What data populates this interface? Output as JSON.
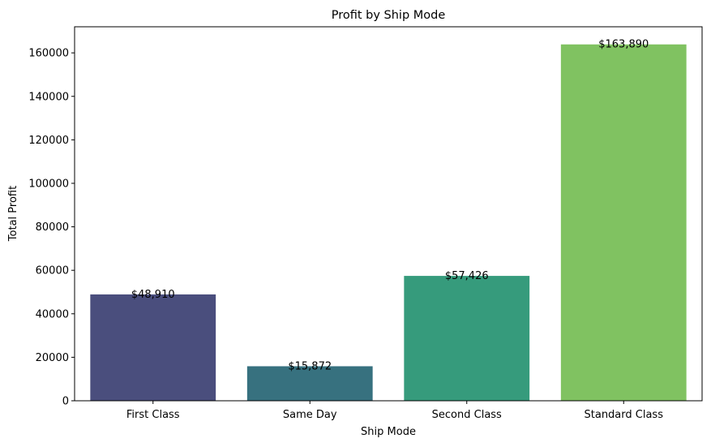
{
  "chart_data": {
    "type": "bar",
    "title": "Profit by Ship Mode",
    "xlabel": "Ship Mode",
    "ylabel": "Total Profit",
    "categories": [
      "First Class",
      "Same Day",
      "Second Class",
      "Standard Class"
    ],
    "values": [
      48910,
      15872,
      57426,
      163890
    ],
    "data_labels": [
      "$48,910",
      "$15,872",
      "$57,426",
      "$163,890"
    ],
    "colors": [
      "#4a4e7d",
      "#37717f",
      "#369b7c",
      "#80c261"
    ],
    "ylim": [
      0,
      172000
    ],
    "yticks": [
      0,
      20000,
      40000,
      60000,
      80000,
      100000,
      120000,
      140000,
      160000
    ],
    "ytick_labels": [
      "0",
      "20000",
      "40000",
      "60000",
      "80000",
      "100000",
      "120000",
      "140000",
      "160000"
    ],
    "grid": false,
    "legend": "none"
  }
}
